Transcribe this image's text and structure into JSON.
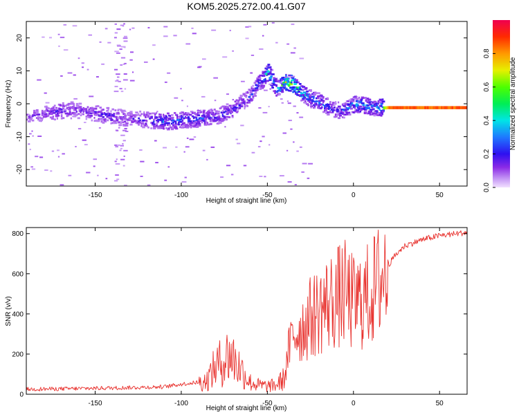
{
  "title": "KOM5.2025.272.00.41.G07",
  "colors": {
    "snr_line": "#e8312d",
    "axis": "#000000",
    "background": "#ffffff"
  },
  "chart_data": [
    {
      "type": "heatmap",
      "name": "spectrogram",
      "xlabel": "Height of straight line (km)",
      "ylabel": "Frequency (Hz)",
      "xlim": [
        -190,
        66
      ],
      "ylim": [
        -25,
        25
      ],
      "xticks": [
        -150,
        -100,
        -50,
        0,
        50
      ],
      "yticks": [
        -20,
        -10,
        0,
        10,
        20
      ],
      "colorbar": {
        "label": "Normalized spectral amplitude",
        "range": [
          0.0,
          1.0
        ],
        "ticks": [
          0.0,
          0.2,
          0.4,
          0.6,
          0.8
        ]
      },
      "ridge": {
        "description": "main frequency trace, x in km, y in Hz, amplitude 0-1",
        "x": [
          -190,
          -180,
          -170,
          -160,
          -150,
          -140,
          -130,
          -120,
          -110,
          -100,
          -90,
          -80,
          -70,
          -60,
          -55,
          -50,
          -45,
          -40,
          -35,
          -30,
          -25,
          -20,
          -15,
          -10,
          -5,
          0,
          5,
          10,
          15,
          20,
          30,
          40,
          50,
          60,
          66
        ],
        "y": [
          -4,
          -3,
          -2,
          -2,
          -3,
          -4,
          -4.5,
          -5,
          -5.5,
          -5,
          -4.5,
          -4,
          -1.5,
          2.5,
          6.5,
          9.5,
          4.5,
          6.5,
          6,
          3,
          1.5,
          0.5,
          -1,
          -2,
          -2,
          0,
          -0.5,
          -1,
          -1.2,
          -1,
          -1,
          -1,
          -1,
          -1,
          -1
        ],
        "amplitude": [
          0.12,
          0.15,
          0.2,
          0.15,
          0.18,
          0.2,
          0.15,
          0.2,
          0.3,
          0.25,
          0.25,
          0.2,
          0.22,
          0.22,
          0.28,
          0.45,
          0.35,
          0.65,
          0.7,
          0.4,
          0.3,
          0.3,
          0.25,
          0.2,
          0.25,
          0.4,
          0.35,
          0.3,
          0.4,
          0.85,
          0.85,
          0.85,
          0.85,
          0.85,
          0.85
        ]
      }
    },
    {
      "type": "line",
      "name": "snr",
      "xlabel": "Height of straight line (km)",
      "ylabel": "SNR (v/v)",
      "xlim": [
        -190,
        66
      ],
      "ylim": [
        0,
        830
      ],
      "xticks": [
        -150,
        -100,
        -50,
        0,
        50
      ],
      "yticks": [
        0,
        200,
        400,
        600,
        800
      ],
      "series": [
        {
          "name": "SNR",
          "color": "#e8312d",
          "trend": {
            "description": "approximate SNR envelope vs height, actual trace is noisy around this",
            "x": [
              -190,
              -170,
              -150,
              -130,
              -110,
              -100,
              -90,
              -85,
              -80,
              -75,
              -72,
              -70,
              -65,
              -60,
              -55,
              -50,
              -45,
              -40,
              -38,
              -35,
              -30,
              -25,
              -20,
              -15,
              -10,
              -5,
              0,
              5,
              10,
              15,
              20,
              25,
              30,
              40,
              50,
              60,
              66
            ],
            "y": [
              20,
              22,
              25,
              28,
              32,
              45,
              55,
              70,
              140,
              170,
              200,
              180,
              120,
              60,
              45,
              40,
              45,
              80,
              200,
              300,
              330,
              380,
              420,
              450,
              480,
              500,
              450,
              470,
              500,
              560,
              640,
              700,
              740,
              770,
              790,
              800,
              805
            ]
          }
        }
      ]
    }
  ]
}
